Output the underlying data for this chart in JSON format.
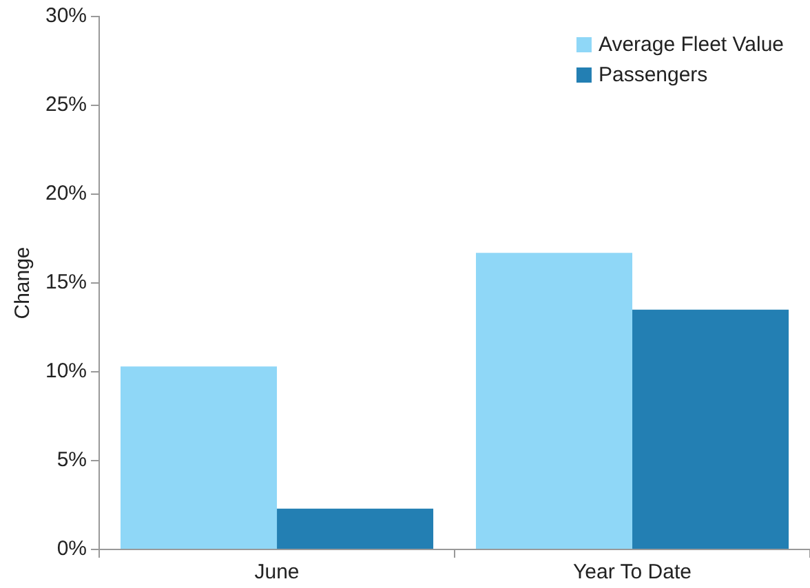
{
  "chart_data": {
    "type": "bar",
    "ylabel": "Change",
    "categories": [
      "June",
      "Year To Date"
    ],
    "series": [
      {
        "name": "Average Fleet Value",
        "color": "#8fd7f7",
        "values": [
          10.3,
          16.7
        ]
      },
      {
        "name": "Passengers",
        "color": "#237fb3",
        "values": [
          2.3,
          13.5
        ]
      }
    ],
    "ylim": [
      0,
      30
    ],
    "yticks": [
      {
        "value": 0,
        "label": "0%"
      },
      {
        "value": 5,
        "label": "5%"
      },
      {
        "value": 10,
        "label": "10%"
      },
      {
        "value": 15,
        "label": "15%"
      },
      {
        "value": 20,
        "label": "20%"
      },
      {
        "value": 25,
        "label": "25%"
      },
      {
        "value": 30,
        "label": "30%"
      }
    ],
    "grid": false,
    "legend": "top right"
  }
}
